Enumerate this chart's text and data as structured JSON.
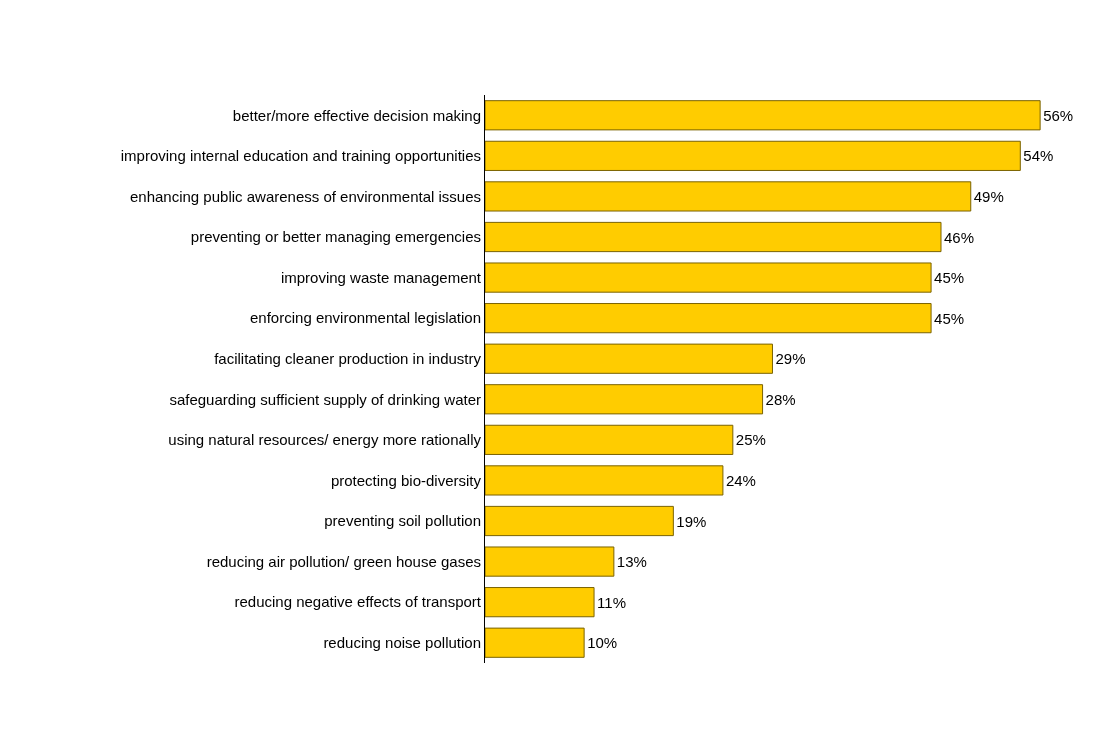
{
  "chart_data": {
    "type": "bar",
    "orientation": "horizontal",
    "categories": [
      "better/more effective decision making",
      "improving internal education and training opportunities",
      "enhancing public awareness of environmental issues",
      "preventing or better managing emergencies",
      "improving waste management",
      "enforcing environmental legislation",
      "facilitating cleaner production in industry",
      "safeguarding sufficient supply of drinking water",
      "using natural resources/ energy more rationally",
      "protecting bio-diversity",
      "preventing soil pollution",
      "reducing air pollution/ green house gases",
      "reducing negative effects of transport",
      "reducing noise pollution"
    ],
    "values": [
      56,
      54,
      49,
      46,
      45,
      45,
      29,
      28,
      25,
      24,
      19,
      13,
      11,
      10
    ],
    "value_labels": [
      "56%",
      "54%",
      "49%",
      "46%",
      "45%",
      "45%",
      "29%",
      "28%",
      "25%",
      "24%",
      "19%",
      "13%",
      "11%",
      "10%"
    ],
    "color": "#ffcc00",
    "grid": false,
    "legend": false
  }
}
